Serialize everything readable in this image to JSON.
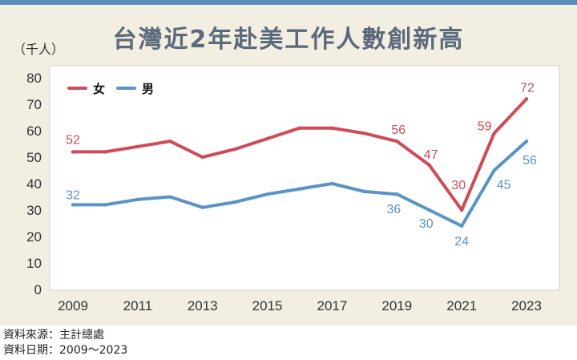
{
  "chart_data": {
    "type": "line",
    "title": "台灣近2年赴美工作人數創新高",
    "ylabel": "（千人）",
    "xlabel": "",
    "x": [
      2009,
      2010,
      2011,
      2012,
      2013,
      2014,
      2015,
      2016,
      2017,
      2018,
      2019,
      2020,
      2021,
      2022,
      2023
    ],
    "x_ticks": [
      2009,
      2011,
      2013,
      2015,
      2017,
      2019,
      2021,
      2023
    ],
    "y_ticks": [
      0,
      10,
      20,
      30,
      40,
      50,
      60,
      70,
      80
    ],
    "ylim": [
      0,
      80
    ],
    "grid": false,
    "legend": "top-left",
    "series": [
      {
        "name": "女",
        "color": "#cf4b56",
        "values": [
          52,
          52,
          54,
          56,
          50,
          53,
          57,
          61,
          61,
          59,
          56,
          47,
          30,
          59,
          72
        ],
        "data_labels": [
          52,
          null,
          null,
          null,
          null,
          null,
          null,
          null,
          null,
          null,
          56,
          47,
          30,
          59,
          72
        ]
      },
      {
        "name": "男",
        "color": "#5a93c5",
        "values": [
          32,
          32,
          34,
          35,
          31,
          33,
          36,
          38,
          40,
          37,
          36,
          30,
          24,
          45,
          56
        ],
        "data_labels": [
          32,
          null,
          null,
          null,
          null,
          null,
          null,
          null,
          null,
          null,
          36,
          30,
          24,
          45,
          56
        ]
      }
    ]
  },
  "footer": {
    "source": "資料來源：主計總處",
    "date": "資料日期：2009～2023"
  }
}
